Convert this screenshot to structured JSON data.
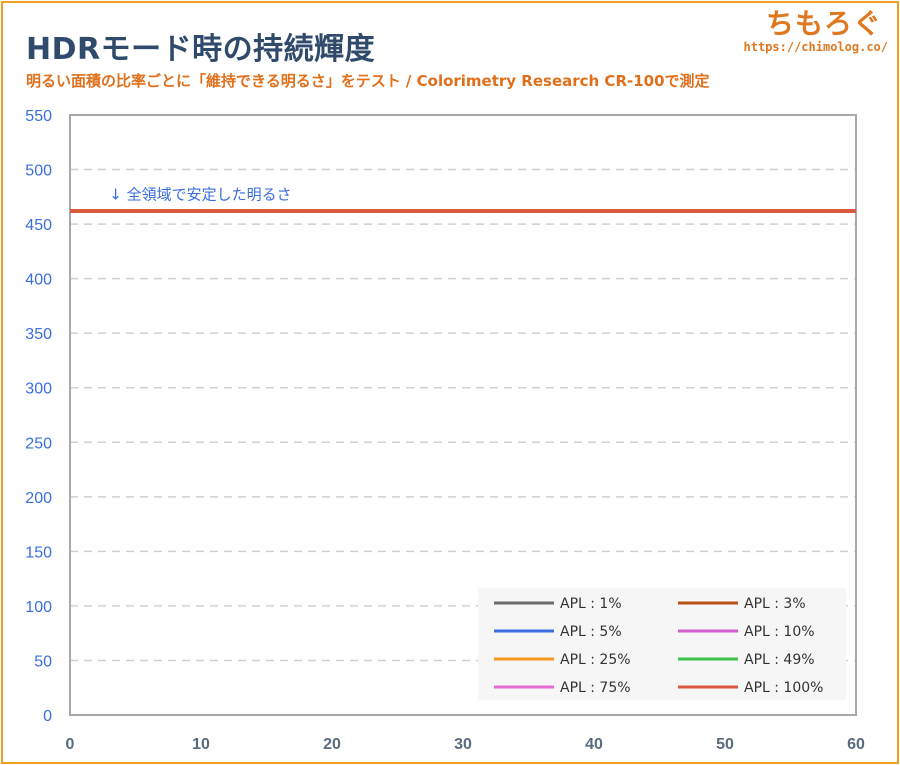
{
  "header": {
    "title": "HDRモード時の持続輝度",
    "subtitle": "明るい面積の比率ごとに「維持できる明るさ」をテスト / Colorimetry Research CR-100で測定",
    "brand_logo": "ちもろぐ",
    "brand_url": "https://chimolog.co/"
  },
  "colors": {
    "border": "#f0a020",
    "title": "#2f4a6b",
    "subtitle": "#e0701c",
    "ytick": "#3a6ee0",
    "xtick": "#5a6b80",
    "grid": "#d0d0d0"
  },
  "chart_data": {
    "type": "line",
    "title": "HDRモード時の持続輝度",
    "xlabel": "",
    "ylabel": "",
    "xlim": [
      0,
      60
    ],
    "ylim": [
      0,
      550
    ],
    "x_ticks": [
      "0",
      "10",
      "20",
      "30",
      "40",
      "50",
      "60"
    ],
    "y_ticks": [
      "0",
      "50",
      "100",
      "150",
      "200",
      "250",
      "300",
      "350",
      "400",
      "450",
      "500",
      "550"
    ],
    "grid": true,
    "legend_position": "bottom-right",
    "annotation": "↓ 全領域で安定した明るさ",
    "annotation_at": [
      3,
      477
    ],
    "series": [
      {
        "name": "APL : 1%",
        "color": "#6b6b6b",
        "x": [],
        "y": []
      },
      {
        "name": "APL : 3%",
        "color": "#b5531a",
        "x": [],
        "y": []
      },
      {
        "name": "APL : 5%",
        "color": "#3a6ee0",
        "x": [],
        "y": []
      },
      {
        "name": "APL : 10%",
        "color": "#d25ed2",
        "x": [],
        "y": []
      },
      {
        "name": "APL : 25%",
        "color": "#f29a1a",
        "x": [],
        "y": []
      },
      {
        "name": "APL : 49%",
        "color": "#3ec24a",
        "x": [],
        "y": []
      },
      {
        "name": "APL : 75%",
        "color": "#e86ad6",
        "x": [],
        "y": []
      },
      {
        "name": "APL : 100%",
        "color": "#d9583e",
        "x": [
          0,
          10,
          20,
          30,
          40,
          50,
          60
        ],
        "y": [
          462,
          462,
          462,
          462,
          462,
          462,
          462
        ]
      }
    ]
  }
}
